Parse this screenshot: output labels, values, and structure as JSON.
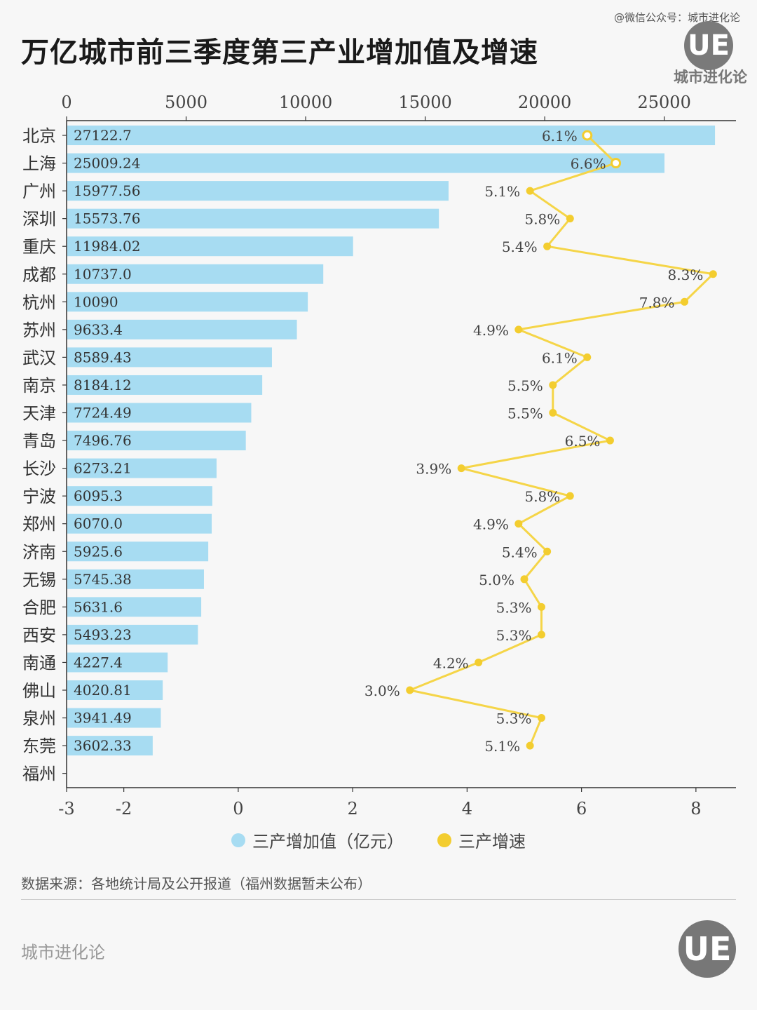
{
  "header": {
    "title": "万亿城市前三季度第三产业增加值及增速",
    "credit": "@微信公众号：城市进化论",
    "logo_mark": "UE",
    "logo_text": "城市进化论"
  },
  "legend": {
    "bar_label": "三产增加值（亿元）",
    "line_label": "三产增速"
  },
  "footer": {
    "source": "数据来源：各地统计局及公开报道（福州数据暂未公布）",
    "brand": "城市进化论",
    "logo_mark": "UE"
  },
  "colors": {
    "bar": "#a7dcf2",
    "line": "#f5d548",
    "dot": "#f3cd2f"
  },
  "chart_data": {
    "type": "bar",
    "title": "万亿城市前三季度第三产业增加值及增速",
    "categories": [
      "北京",
      "上海",
      "广州",
      "深圳",
      "重庆",
      "成都",
      "杭州",
      "苏州",
      "武汉",
      "南京",
      "天津",
      "青岛",
      "长沙",
      "宁波",
      "郑州",
      "济南",
      "无锡",
      "合肥",
      "西安",
      "南通",
      "佛山",
      "泉州",
      "东莞",
      "福州"
    ],
    "series": [
      {
        "name": "三产增加值（亿元）",
        "type": "bar",
        "values": [
          27122.7,
          25009.24,
          15977.56,
          15573.76,
          11984.02,
          10737.0,
          10090,
          9633.4,
          8589.43,
          8184.12,
          7724.49,
          7496.76,
          6273.21,
          6095.3,
          6070.0,
          5925.6,
          5745.38,
          5631.6,
          5493.23,
          4227.4,
          4020.81,
          3941.49,
          3602.33,
          null
        ],
        "labels": [
          "27122.7",
          "25009.24",
          "15977.56",
          "15573.76",
          "11984.02",
          "10737.0",
          "10090",
          "9633.4",
          "8589.43",
          "8184.12",
          "7724.49",
          "7496.76",
          "6273.21",
          "6095.3",
          "6070.0",
          "5925.6",
          "5745.38",
          "5631.6",
          "5493.23",
          "4227.4",
          "4020.81",
          "3941.49",
          "3602.33",
          ""
        ]
      },
      {
        "name": "三产增速",
        "type": "line",
        "values": [
          6.1,
          6.6,
          5.1,
          5.8,
          5.4,
          8.3,
          7.8,
          4.9,
          6.1,
          5.5,
          5.5,
          6.5,
          3.9,
          5.8,
          4.9,
          5.4,
          5.0,
          5.3,
          5.3,
          4.2,
          3.0,
          5.3,
          5.1,
          null
        ],
        "labels": [
          "6.1%",
          "6.6%",
          "5.1%",
          "5.8%",
          "5.4%",
          "8.3%",
          "7.8%",
          "4.9%",
          "6.1%",
          "5.5%",
          "5.5%",
          "6.5%",
          "3.9%",
          "5.8%",
          "4.9%",
          "5.4%",
          "5.0%",
          "5.3%",
          "5.3%",
          "4.2%",
          "3.0%",
          "5.3%",
          "5.1%",
          ""
        ]
      }
    ],
    "top_axis": {
      "range": [
        0,
        28000
      ],
      "ticks": [
        0,
        5000,
        10000,
        15000,
        20000,
        25000
      ]
    },
    "bottom_axis": {
      "range": [
        -3,
        8.7
      ],
      "ticks": [
        -3,
        -2,
        0,
        2,
        4,
        6,
        8
      ]
    },
    "legend_position": "bottom-center"
  }
}
